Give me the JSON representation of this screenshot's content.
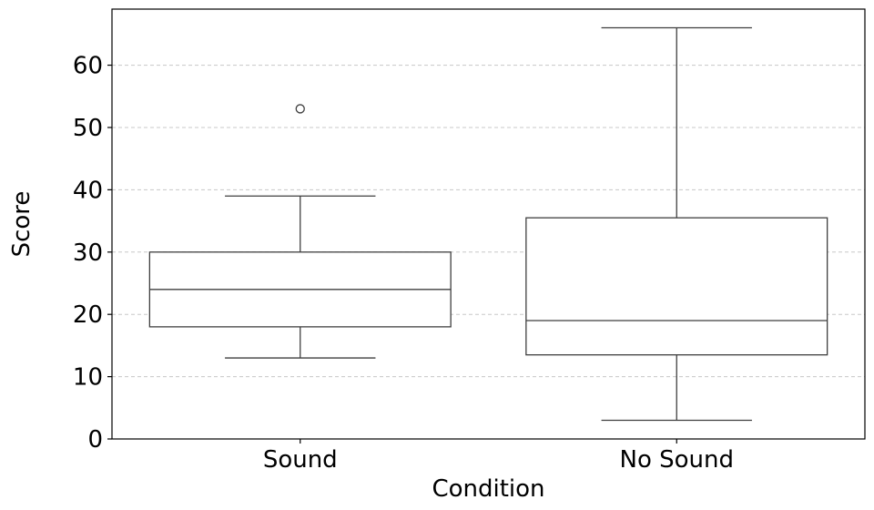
{
  "chart_data": {
    "type": "box",
    "xlabel": "Condition",
    "ylabel": "Score",
    "ylim": [
      0,
      69
    ],
    "yticks": [
      0,
      10,
      20,
      30,
      40,
      50,
      60
    ],
    "grid": "horizontal dashed",
    "colors": {
      "stroke": "#3f3f3f",
      "grid": "#c8c8c8",
      "frame": "#000000"
    },
    "categories": [
      "Sound",
      "No Sound"
    ],
    "boxes": [
      {
        "category": "Sound",
        "whisker_low": 13,
        "q1": 18,
        "median": 24,
        "q3": 30,
        "whisker_high": 39,
        "outliers": [
          53
        ]
      },
      {
        "category": "No Sound",
        "whisker_low": 3,
        "q1": 13.5,
        "median": 19,
        "q3": 35.5,
        "whisker_high": 66,
        "outliers": []
      }
    ]
  }
}
